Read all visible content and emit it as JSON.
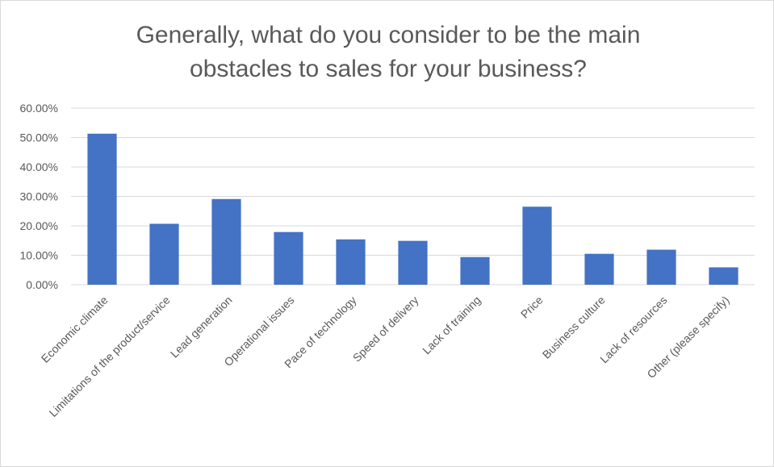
{
  "chart_data": {
    "type": "bar",
    "title_lines": [
      "Generally, what do you consider to be the main",
      "obstacles to sales for your business?"
    ],
    "categories": [
      "Economic climate",
      "Limitations of the product/service",
      "Lead generation",
      "Operational issues",
      "Pace of technology",
      "Speed of delivery",
      "Lack of training",
      "Price",
      "Business culture",
      "Lack of resources",
      "Other (please specify)"
    ],
    "values": [
      51.3,
      20.7,
      29.1,
      17.9,
      15.4,
      14.9,
      9.4,
      26.5,
      10.5,
      11.9,
      5.9
    ],
    "ylim": [
      0,
      60
    ],
    "y_ticks": [
      "0.00%",
      "10.00%",
      "20.00%",
      "30.00%",
      "40.00%",
      "50.00%",
      "60.00%"
    ],
    "grid": true,
    "bar_color": "#4472c4",
    "grid_color": "#d9d9d9",
    "xlabel": "",
    "ylabel": ""
  }
}
